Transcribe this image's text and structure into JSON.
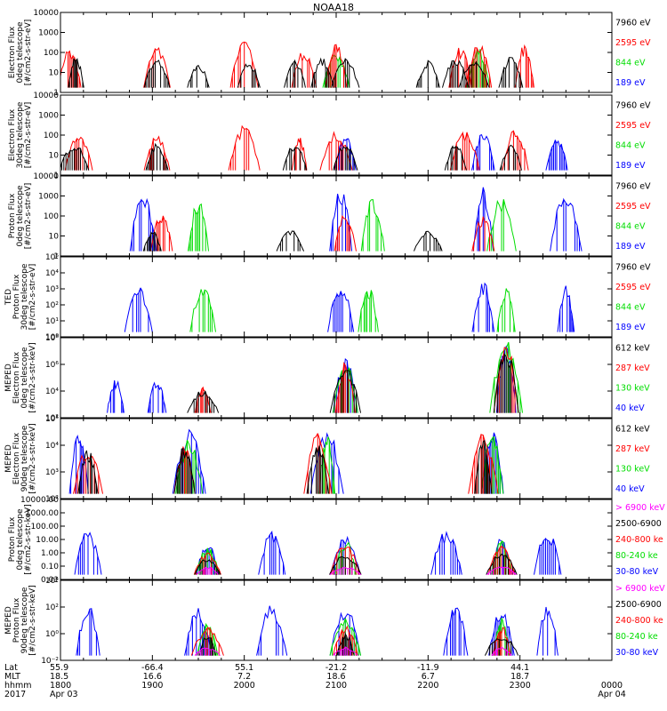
{
  "title": "NOAA18",
  "chart_data": {
    "type": "line",
    "x_range_hours": [
      18,
      24
    ],
    "panels": [
      {
        "id": "p1",
        "ylabel": [
          "Electron Flux",
          "0deg telescope",
          "[#/cm2-s-str-eV]"
        ],
        "yscale": "log",
        "ylim": [
          1,
          10000
        ],
        "yticks": [
          "1",
          "10",
          "100",
          "1000",
          "10000"
        ],
        "series": [
          {
            "name": "7960 eV",
            "color": "#000000",
            "peaks": [
              [
                18.17,
                70
              ],
              [
                19.05,
                60
              ],
              [
                19.5,
                30
              ],
              [
                20.05,
                40
              ],
              [
                20.55,
                50
              ],
              [
                20.85,
                60
              ],
              [
                21.1,
                50
              ],
              [
                22.0,
                40
              ],
              [
                22.3,
                60
              ],
              [
                22.5,
                50
              ],
              [
                22.9,
                60
              ]
            ]
          },
          {
            "name": "2595 eV",
            "color": "#ff0000",
            "peaks": [
              [
                18.1,
                200
              ],
              [
                19.05,
                200
              ],
              [
                20.0,
                600
              ],
              [
                20.65,
                150
              ],
              [
                21.0,
                400
              ],
              [
                22.35,
                200
              ],
              [
                22.55,
                400
              ],
              [
                23.05,
                300
              ]
            ]
          },
          {
            "name": "844 eV",
            "color": "#00dd00",
            "peaks": [
              [
                21.0,
                100
              ],
              [
                22.55,
                200
              ]
            ]
          },
          {
            "name": "189 eV",
            "color": "#0000ff",
            "peaks": []
          }
        ]
      },
      {
        "id": "p2",
        "ylabel": [
          "Electron Flux",
          "30deg telescope",
          "[#/cm2-s-str-eV]"
        ],
        "yscale": "log",
        "ylim": [
          1,
          10000
        ],
        "yticks": [
          "1",
          "10",
          "100",
          "1000",
          "10000"
        ],
        "series": [
          {
            "name": "7960 eV",
            "color": "#000000",
            "peaks": [
              [
                18.15,
                40
              ],
              [
                19.05,
                40
              ],
              [
                20.55,
                40
              ],
              [
                21.1,
                40
              ],
              [
                22.3,
                40
              ],
              [
                22.9,
                40
              ]
            ]
          },
          {
            "name": "2595 eV",
            "color": "#ff0000",
            "peaks": [
              [
                18.2,
                200
              ],
              [
                19.05,
                100
              ],
              [
                20.0,
                400
              ],
              [
                20.6,
                100
              ],
              [
                21.0,
                150
              ],
              [
                22.4,
                200
              ],
              [
                22.95,
                300
              ]
            ]
          },
          {
            "name": "844 eV",
            "color": "#00dd00",
            "peaks": []
          },
          {
            "name": "189 eV",
            "color": "#0000ff",
            "peaks": [
              [
                21.1,
                100
              ],
              [
                22.6,
                150
              ],
              [
                23.4,
                100
              ]
            ]
          }
        ]
      },
      {
        "id": "p3",
        "ylabel": [
          "Proton Flux",
          "0deg telescope",
          "[#/cm2-s-str-eV]"
        ],
        "yscale": "log",
        "ylim": [
          1,
          10000
        ],
        "yticks": [
          "1",
          "10",
          "100",
          "1000",
          "10000"
        ],
        "series": [
          {
            "name": "7960 eV",
            "color": "#000000",
            "peaks": [
              [
                19.0,
                20
              ],
              [
                20.5,
                20
              ],
              [
                22.0,
                20
              ]
            ]
          },
          {
            "name": "2595 eV",
            "color": "#ff0000",
            "peaks": [
              [
                19.1,
                150
              ],
              [
                21.1,
                150
              ],
              [
                22.6,
                100
              ]
            ]
          },
          {
            "name": "844 eV",
            "color": "#00dd00",
            "peaks": [
              [
                19.5,
                700
              ],
              [
                21.4,
                1000
              ],
              [
                22.8,
                1000
              ]
            ]
          },
          {
            "name": "189 eV",
            "color": "#0000ff",
            "peaks": [
              [
                18.9,
                2000
              ],
              [
                21.05,
                2500
              ],
              [
                22.6,
                3000
              ],
              [
                23.5,
                2000
              ]
            ]
          }
        ]
      },
      {
        "id": "p4",
        "ylabel": [
          "TED",
          "Proton Flux",
          "30deg telescope",
          "[#/cm2-s-str-eV]"
        ],
        "yscale": "log",
        "ylim": [
          1,
          100000
        ],
        "yticks": [
          "10⁰",
          "10¹",
          "10²",
          "10³",
          "10⁴",
          "10⁵"
        ],
        "series": [
          {
            "name": "7960 eV",
            "color": "#000000",
            "peaks": []
          },
          {
            "name": "2595 eV",
            "color": "#ff0000",
            "peaks": []
          },
          {
            "name": "844 eV",
            "color": "#00dd00",
            "peaks": [
              [
                19.55,
                2000
              ],
              [
                21.35,
                1500
              ],
              [
                22.85,
                1500
              ]
            ]
          },
          {
            "name": "189 eV",
            "color": "#0000ff",
            "peaks": [
              [
                18.85,
                2000
              ],
              [
                21.05,
                3000
              ],
              [
                22.6,
                3000
              ],
              [
                23.5,
                2000
              ]
            ]
          }
        ]
      },
      {
        "id": "p5",
        "ylabel": [
          "MEPED",
          "Electron Flux",
          "0deg telescope",
          "[#/cm2-s-str-keV]"
        ],
        "yscale": "log",
        "ylim": [
          100,
          1000000000
        ],
        "yticks": [
          "10²",
          "10⁴",
          "10⁶",
          "10⁸"
        ],
        "series": [
          {
            "name": "612 keV",
            "color": "#000000",
            "peaks": [
              [
                19.55,
                30000
              ],
              [
                21.1,
                3000000
              ],
              [
                22.85,
                300000000
              ]
            ]
          },
          {
            "name": "287 keV",
            "color": "#ff0000",
            "peaks": [
              [
                19.55,
                60000
              ],
              [
                21.1,
                8000000
              ],
              [
                22.85,
                600000000
              ]
            ]
          },
          {
            "name": "130 keV",
            "color": "#00dd00",
            "peaks": [
              [
                21.1,
                10000000
              ],
              [
                22.85,
                800000000
              ]
            ]
          },
          {
            "name": "40 keV",
            "color": "#0000ff",
            "peaks": [
              [
                18.6,
                300000
              ],
              [
                19.05,
                200000
              ],
              [
                21.1,
                20000000
              ],
              [
                22.85,
                1000000000
              ]
            ]
          }
        ]
      },
      {
        "id": "p6",
        "ylabel": [
          "MEPED",
          "Electron Flux",
          "90deg telescope",
          "[#/cm2-s-str-keV]"
        ],
        "yscale": "log",
        "ylim": [
          100,
          1000000
        ],
        "yticks": [
          "10²",
          "10³",
          "10⁴",
          "10⁵"
        ],
        "series": [
          {
            "name": "612 keV",
            "color": "#000000",
            "peaks": [
              [
                18.3,
                30000
              ],
              [
                19.35,
                50000
              ],
              [
                20.8,
                100000
              ],
              [
                22.6,
                100000
              ]
            ]
          },
          {
            "name": "287 keV",
            "color": "#ff0000",
            "peaks": [
              [
                18.3,
                40000
              ],
              [
                19.35,
                60000
              ],
              [
                20.8,
                200000
              ],
              [
                22.6,
                200000
              ]
            ]
          },
          {
            "name": "130 keV",
            "color": "#00dd00",
            "peaks": [
              [
                19.4,
                100000
              ],
              [
                20.9,
                200000
              ],
              [
                22.7,
                200000
              ]
            ]
          },
          {
            "name": "40 keV",
            "color": "#0000ff",
            "peaks": [
              [
                18.2,
                500000
              ],
              [
                19.4,
                300000
              ],
              [
                20.9,
                300000
              ],
              [
                22.7,
                400000
              ]
            ]
          }
        ]
      },
      {
        "id": "p7",
        "ylabel": [
          "Proton Flux",
          "0deg telescope",
          "[#/cm2-s-str-keV]"
        ],
        "yscale": "log",
        "ylim": [
          0.01,
          10000
        ],
        "yticks": [
          "0.01",
          "0.10",
          "1.00",
          "10.00",
          "100.00",
          "1000.00",
          "10000.00"
        ],
        "series": [
          {
            "name": "> 6900 keV",
            "color": "#ff00ff",
            "peaks": [
              [
                19.6,
                0.1
              ],
              [
                21.1,
                0.1
              ],
              [
                22.8,
                0.1
              ]
            ]
          },
          {
            "name": "2500-6900",
            "color": "#000000",
            "peaks": [
              [
                19.6,
                0.5
              ],
              [
                21.1,
                1
              ],
              [
                22.8,
                1
              ]
            ]
          },
          {
            "name": "240-800 ke",
            "color": "#ff0000",
            "peaks": [
              [
                19.6,
                1
              ],
              [
                21.1,
                5
              ],
              [
                22.8,
                5
              ]
            ]
          },
          {
            "name": "80-240 ke",
            "color": "#00dd00",
            "peaks": [
              [
                19.6,
                3
              ],
              [
                21.1,
                10
              ],
              [
                22.8,
                10
              ]
            ]
          },
          {
            "name": "30-80 keV",
            "color": "#0000ff",
            "peaks": [
              [
                18.3,
                50
              ],
              [
                19.6,
                8
              ],
              [
                20.3,
                50
              ],
              [
                21.1,
                20
              ],
              [
                22.2,
                50
              ],
              [
                22.8,
                20
              ],
              [
                23.3,
                50
              ]
            ]
          }
        ]
      },
      {
        "id": "p8",
        "ylabel": [
          "MEPED",
          "Proton Flux",
          "90deg telescope",
          "[#/cm2-s-str-keV]"
        ],
        "yscale": "log",
        "ylim": [
          0.01,
          10000
        ],
        "yticks": [
          "10⁻²",
          "10⁰",
          "10²",
          "10⁴"
        ],
        "series": [
          {
            "name": "> 6900 keV",
            "color": "#ff00ff",
            "peaks": [
              [
                19.6,
                0.1
              ],
              [
                21.1,
                0.1
              ],
              [
                22.8,
                0.1
              ]
            ]
          },
          {
            "name": "2500-6900",
            "color": "#000000",
            "peaks": [
              [
                19.6,
                1
              ],
              [
                21.1,
                1
              ],
              [
                22.8,
                1
              ]
            ]
          },
          {
            "name": "240-800 ke",
            "color": "#ff0000",
            "peaks": [
              [
                19.6,
                3
              ],
              [
                21.1,
                5
              ],
              [
                22.8,
                5
              ]
            ]
          },
          {
            "name": "80-240 ke",
            "color": "#00dd00",
            "peaks": [
              [
                19.6,
                10
              ],
              [
                21.1,
                20
              ],
              [
                22.8,
                20
              ]
            ]
          },
          {
            "name": "30-80 keV",
            "color": "#0000ff",
            "peaks": [
              [
                18.3,
                200
              ],
              [
                19.5,
                100
              ],
              [
                20.3,
                200
              ],
              [
                21.1,
                100
              ],
              [
                22.3,
                200
              ],
              [
                22.8,
                100
              ],
              [
                23.3,
                200
              ]
            ]
          }
        ]
      }
    ],
    "footer": {
      "rows": [
        "Lat",
        "MLT",
        "hhmm",
        "2017"
      ],
      "columns": [
        {
          "x": 18.0,
          "lat": "55.9",
          "mlt": "18.5",
          "hhmm": "1800",
          "date": "Apr 03"
        },
        {
          "x": 19.0,
          "lat": "-66.4",
          "mlt": "16.6",
          "hhmm": "1900",
          "date": ""
        },
        {
          "x": 20.0,
          "lat": "55.1",
          "mlt": "7.2",
          "hhmm": "2000",
          "date": ""
        },
        {
          "x": 21.0,
          "lat": "-21.2",
          "mlt": "18.6",
          "hhmm": "2100",
          "date": ""
        },
        {
          "x": 22.0,
          "lat": "-11.9",
          "mlt": "6.7",
          "hhmm": "2200",
          "date": ""
        },
        {
          "x": 23.0,
          "lat": "44.1",
          "mlt": "18.7",
          "hhmm": "2300",
          "date": ""
        },
        {
          "x": 24.0,
          "lat": "",
          "mlt": "",
          "hhmm": "0000",
          "date": "Apr 04"
        }
      ]
    }
  }
}
